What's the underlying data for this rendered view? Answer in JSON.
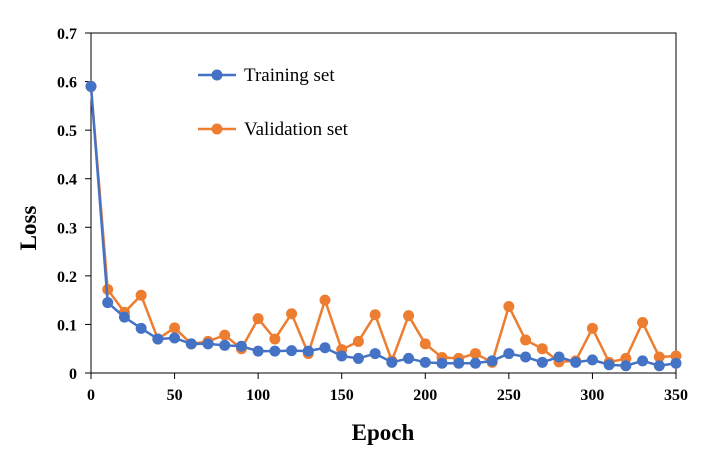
{
  "chart_data": {
    "type": "line",
    "xlabel": "Epoch",
    "ylabel": "Loss",
    "xlim": [
      0,
      350
    ],
    "ylim": [
      0,
      0.7
    ],
    "xticks": [
      "0",
      "50",
      "100",
      "150",
      "200",
      "250",
      "300",
      "350"
    ],
    "yticks": [
      "0",
      "0.1",
      "0.2",
      "0.3",
      "0.4",
      "0.5",
      "0.6",
      "0.7"
    ],
    "grid": false,
    "legend_position": "top-center",
    "x": [
      0,
      10,
      20,
      30,
      40,
      50,
      60,
      70,
      80,
      90,
      100,
      110,
      120,
      130,
      140,
      150,
      160,
      170,
      180,
      190,
      200,
      210,
      220,
      230,
      240,
      250,
      260,
      270,
      280,
      290,
      300,
      310,
      320,
      330,
      340,
      350
    ],
    "series": [
      {
        "name": "Training set",
        "color": "#4472c4",
        "values": [
          0.59,
          0.145,
          0.115,
          0.092,
          0.07,
          0.072,
          0.06,
          0.06,
          0.057,
          0.055,
          0.045,
          0.045,
          0.046,
          0.045,
          0.052,
          0.035,
          0.03,
          0.04,
          0.022,
          0.03,
          0.022,
          0.02,
          0.02,
          0.02,
          0.025,
          0.04,
          0.033,
          0.022,
          0.033,
          0.022,
          0.027,
          0.017,
          0.015,
          0.025,
          0.015,
          0.02
        ]
      },
      {
        "name": "Validation set",
        "color": "#ed7d31",
        "values": [
          0.59,
          0.172,
          0.125,
          0.16,
          0.07,
          0.093,
          0.06,
          0.065,
          0.078,
          0.05,
          0.112,
          0.07,
          0.122,
          0.04,
          0.15,
          0.048,
          0.065,
          0.12,
          0.025,
          0.118,
          0.06,
          0.032,
          0.03,
          0.04,
          0.022,
          0.137,
          0.068,
          0.05,
          0.023,
          0.025,
          0.092,
          0.022,
          0.03,
          0.104,
          0.033,
          0.035
        ]
      }
    ]
  }
}
